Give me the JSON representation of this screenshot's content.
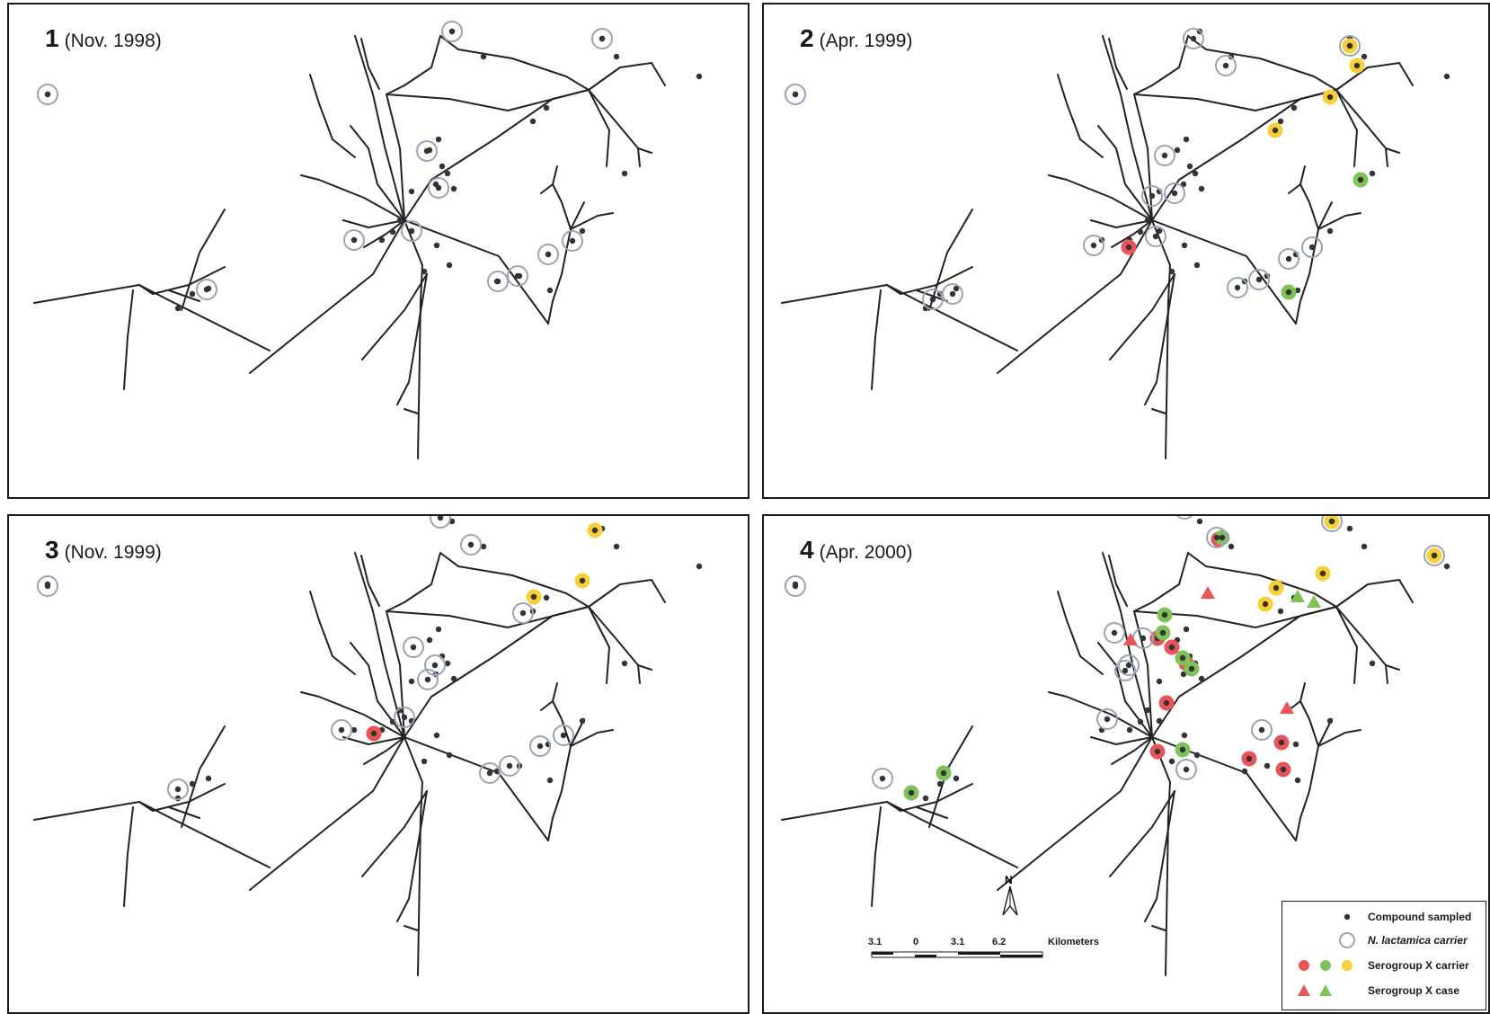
{
  "panels": [
    {
      "number": "1",
      "date": "(Nov. 1998)"
    },
    {
      "number": "2",
      "date": "(Apr. 1999)"
    },
    {
      "number": "3",
      "date": "(Nov. 1999)"
    },
    {
      "number": "4",
      "date": "(Apr. 2000)"
    }
  ],
  "colors": {
    "road": "#222222",
    "compound": "#333333",
    "lactamica_ring": "#9aa3b5",
    "red": "#e8545a",
    "green": "#7fc257",
    "yellow": "#f7cf36"
  },
  "scale": {
    "north": "N",
    "ticks": [
      "3.1",
      "0",
      "3.1",
      "6.2"
    ],
    "units": "Kilometers"
  },
  "legend": {
    "items": [
      {
        "label": "Compound sampled",
        "symbol": "dot"
      },
      {
        "label": "N. lactamica carrier",
        "symbol": "ring"
      },
      {
        "label": "Serogroup X carrier",
        "symbol": "colored-circles"
      },
      {
        "label": "Serogroup X case",
        "symbol": "colored-triangles"
      }
    ]
  }
}
